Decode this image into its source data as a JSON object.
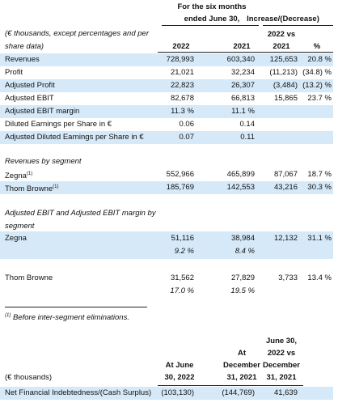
{
  "header": {
    "period_line1": "For the six months",
    "period_line2": "ended June 30,",
    "change": "Increase/(Decrease)",
    "units_line1": "(€ thousands, except percentages and per",
    "units_line2": "share data)",
    "change_sub": "2022 vs",
    "columns": [
      "2022",
      "2021",
      "2021",
      "%"
    ]
  },
  "rows": [
    {
      "label": "Revenues",
      "values": [
        "728,993",
        "603,340",
        "125,653",
        "20.8 %"
      ]
    },
    {
      "label": "Profit",
      "values": [
        "21,021",
        "32,234",
        "(11,213)",
        "(34.8) %"
      ]
    },
    {
      "label": "Adjusted Profit",
      "values": [
        "22,823",
        "26,307",
        "(3,484)",
        "(13.2) %"
      ]
    },
    {
      "label": "Adjusted EBIT",
      "values": [
        "82,678",
        "66,813",
        "15,865",
        "23.7 %"
      ]
    },
    {
      "label": "Adjusted EBIT margin",
      "values": [
        "11.3 %",
        "11.1 %"
      ]
    },
    {
      "label": "Diluted Earnings per Share in €",
      "values": [
        "0.06",
        "0.14"
      ]
    },
    {
      "label": "Adjusted Diluted Earnings per Share in €",
      "values": [
        "0.07",
        "0.11"
      ]
    }
  ],
  "segment_revenue": {
    "title": "Revenues by segment",
    "note_mark": "(1)",
    "rows": [
      {
        "label": "Zegna",
        "values": [
          "552,966",
          "465,899",
          "87,067",
          "18.7 %"
        ]
      },
      {
        "label": "Thom Browne",
        "values": [
          "185,769",
          "142,553",
          "43,216",
          "30.3 %"
        ]
      }
    ]
  },
  "segment_ebit": {
    "title_line1": "Adjusted EBIT and Adjusted EBIT margin by",
    "title_line2": "segment",
    "rows": [
      {
        "label": "Zegna",
        "values": [
          "51,116",
          "38,984",
          "12,132",
          "31.1 %"
        ],
        "margins": [
          "9.2 %",
          "8.4 %"
        ]
      },
      {
        "label": "Thom Browne",
        "values": [
          "31,562",
          "27,829",
          "3,733",
          "13.4 %"
        ],
        "margins": [
          "17.0 %",
          "19.5 %"
        ]
      }
    ]
  },
  "footnote": {
    "mark": "(1)",
    "text": "Before inter-segment eliminations."
  },
  "debt_table": {
    "col1": [
      "At June",
      "30, 2022"
    ],
    "col2": [
      "At",
      "December",
      "31, 2021"
    ],
    "col3": [
      "June 30,",
      "2022 vs",
      "December",
      "31, 2021"
    ],
    "units": "(€ thousands)",
    "row": {
      "label": "Net Financial Indebtedness/(Cash Surplus)",
      "values": [
        "(103,130)",
        "(144,769)",
        "41,639"
      ]
    }
  }
}
